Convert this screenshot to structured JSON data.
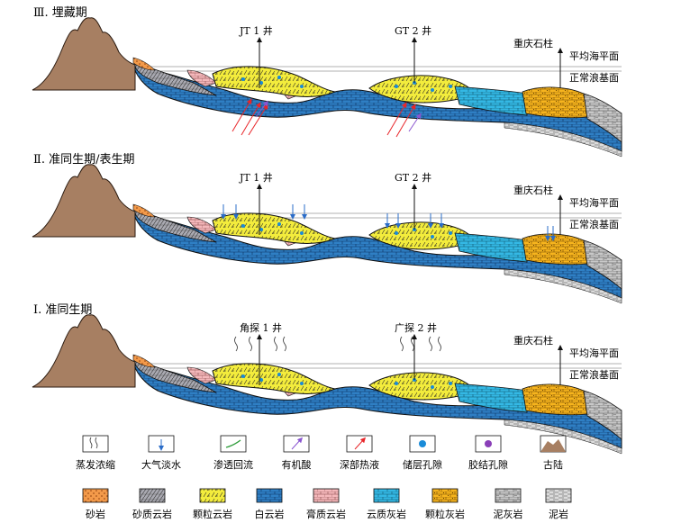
{
  "colors": {
    "sandstone": "#f39a4a",
    "silty_dolomite": "#a9a9b1",
    "grain_dolomite": "#f3ec3c",
    "dolomite": "#2f7fc4",
    "gypsum_dolomite": "#f4b8bb",
    "dolomitic_limestone": "#34b8e4",
    "grain_limestone": "#f6b41e",
    "marl": "#c8c8c8",
    "mudstone": "#dcdcdc",
    "ancient_land": "#a77f62",
    "fresh_water": "#2a6cc8",
    "hydrothermal": "#e8262a",
    "organic_acid": "#8a55d0",
    "seepage": "#2e9c3a",
    "pore": "#1a8bd8",
    "cement_pore": "#8a3fb8"
  },
  "panels": [
    {
      "id": "stage-3",
      "title": "Ⅲ. 埋藏期",
      "well_left": "JT 1 井",
      "well_right": "GT 2 井",
      "column_label": "重庆石柱",
      "sea_level": "平均海平面",
      "wave_base": "正常浪基面"
    },
    {
      "id": "stage-2",
      "title": "Ⅱ. 准同生期/表生期",
      "well_left": "JT 1 井",
      "well_right": "GT 2 井",
      "column_label": "重庆石柱",
      "sea_level": "平均海平面",
      "wave_base": "正常浪基面"
    },
    {
      "id": "stage-1",
      "title": "Ⅰ. 准同生期",
      "well_left": "角探 1 井",
      "well_right": "广探 2 井",
      "column_label": "重庆石柱",
      "sea_level": "平均海平面",
      "wave_base": "正常浪基面"
    }
  ],
  "legend_row1": [
    {
      "key": "evaporation",
      "label": "蒸发浓缩",
      "icon": "evaporation-icon"
    },
    {
      "key": "fresh_water",
      "label": "大气淡水",
      "icon": "fresh-water-arrow-icon"
    },
    {
      "key": "seepage",
      "label": "渗透回流",
      "icon": "seepage-reflux-icon"
    },
    {
      "key": "organic_acid",
      "label": "有机酸",
      "icon": "organic-acid-arrow-icon"
    },
    {
      "key": "hydrothermal",
      "label": "深部热液",
      "icon": "hydrothermal-arrow-icon"
    },
    {
      "key": "pore",
      "label": "储层孔隙",
      "icon": "reservoir-pore-icon"
    },
    {
      "key": "cement_pore",
      "label": "胶结孔隙",
      "icon": "cemented-pore-icon"
    },
    {
      "key": "ancient_land",
      "label": "古陆",
      "icon": "ancient-land-icon"
    }
  ],
  "legend_row2": [
    {
      "key": "sandstone",
      "label": "砂岩"
    },
    {
      "key": "silty_dolomite",
      "label": "砂质云岩"
    },
    {
      "key": "grain_dolomite",
      "label": "颗粒云岩"
    },
    {
      "key": "dolomite",
      "label": "白云岩"
    },
    {
      "key": "gypsum_dolomite",
      "label": "膏质云岩"
    },
    {
      "key": "dolomitic_limestone",
      "label": "云质灰岩"
    },
    {
      "key": "grain_limestone",
      "label": "颗粒灰岩"
    },
    {
      "key": "marl",
      "label": "泥灰岩"
    },
    {
      "key": "mudstone",
      "label": "泥岩"
    }
  ]
}
